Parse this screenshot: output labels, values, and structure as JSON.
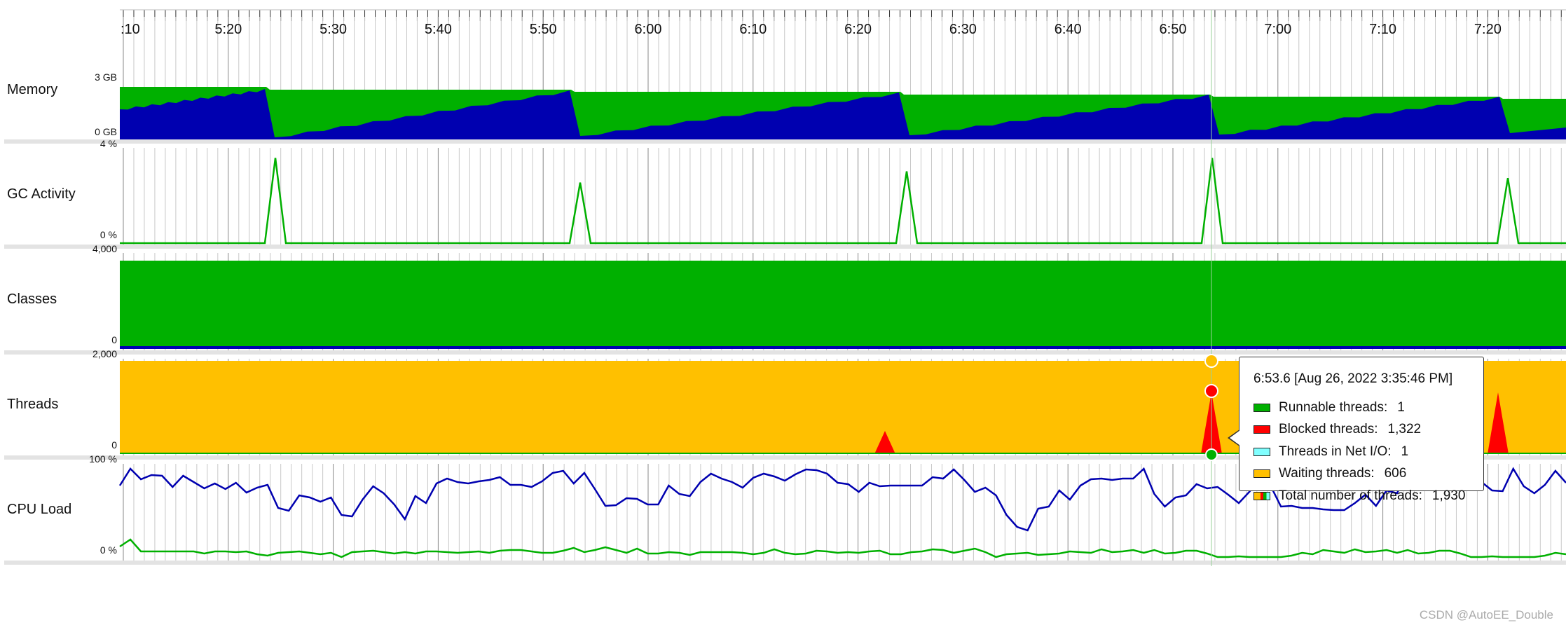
{
  "chart_data": {
    "type": "area",
    "x_ticks": [
      ":10",
      "5:20",
      "5:30",
      "5:40",
      "5:50",
      "6:00",
      "6:10",
      "6:20",
      "6:30",
      "6:40",
      "6:50",
      "7:00",
      "7:10",
      "7:20"
    ],
    "panels": [
      {
        "name": "Memory",
        "ymax_label": "3 GB",
        "ymin_label": "0 GB",
        "series": [
          {
            "color": "#00b000"
          },
          {
            "color": "#0000b0"
          }
        ]
      },
      {
        "name": "GC Activity",
        "ymax_label": "4 %",
        "ymin_label": "0 %",
        "series": [
          {
            "color": "#00b000"
          }
        ],
        "peaks_x": [
          5.245,
          5.537,
          6.248,
          6.538,
          7.203
        ],
        "peaks_y": [
          3.8,
          2.7,
          3.2,
          3.8,
          2.9
        ]
      },
      {
        "name": "Classes",
        "ymax_label": "4,000",
        "ymin_label": "0",
        "series": [
          {
            "color": "#00b000"
          },
          {
            "color": "#0000b0"
          }
        ]
      },
      {
        "name": "Threads",
        "ymax_label": "2,000",
        "ymin_label": "0",
        "series": [
          {
            "color": "#ffc000"
          },
          {
            "color": "#ff0000"
          },
          {
            "color": "#00b000"
          }
        ]
      },
      {
        "name": "CPU Load",
        "ymax_label": "100 %",
        "ymin_label": "0 %",
        "series": [
          {
            "color": "#0000b0"
          },
          {
            "color": "#00b000"
          }
        ]
      }
    ],
    "cursor_time": "6:53.6"
  },
  "tooltip": {
    "title": "6:53.6 [Aug 26, 2022 3:35:46 PM]",
    "rows": [
      {
        "label": "Runnable threads:",
        "value": "1",
        "color": "#00b000"
      },
      {
        "label": "Blocked threads:",
        "value": "1,322",
        "color": "#ff0000"
      },
      {
        "label": "Threads in Net I/O:",
        "value": "1",
        "color": "#80ffff"
      },
      {
        "label": "Waiting threads:",
        "value": "606",
        "color": "#ffc000"
      },
      {
        "label": "Total number of threads:",
        "value": "1,930",
        "color": "#ffc000"
      }
    ]
  },
  "watermark": "CSDN @AutoEE_Double"
}
